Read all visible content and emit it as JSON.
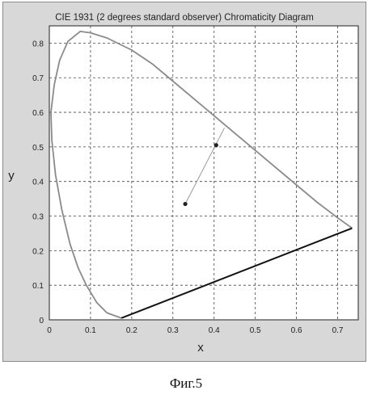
{
  "caption": "Фиг.5",
  "chart_data": {
    "type": "scatter",
    "title": "CIE 1931 (2 degrees standard observer) Chromaticity Diagram",
    "xlabel": "x",
    "ylabel": "y",
    "xlim": [
      0,
      0.75
    ],
    "ylim": [
      0,
      0.85
    ],
    "x_ticks": [
      0,
      0.1,
      0.2,
      0.3,
      0.4,
      0.5,
      0.6,
      0.7
    ],
    "y_ticks": [
      0,
      0.1,
      0.2,
      0.3,
      0.4,
      0.5,
      0.6,
      0.7,
      0.8
    ],
    "x_tick_labels": [
      "0",
      "0.1",
      "0.2",
      "0.3",
      "0.4",
      "0.5",
      "0.6",
      "0.7"
    ],
    "y_tick_labels": [
      "0",
      "0.1",
      "0.2",
      "0.3",
      "0.4",
      "0.5",
      "0.6",
      "0.7",
      "0.8"
    ],
    "grid": true,
    "spectral_locus": [
      [
        0.175,
        0.005
      ],
      [
        0.14,
        0.02
      ],
      [
        0.115,
        0.05
      ],
      [
        0.09,
        0.1
      ],
      [
        0.07,
        0.15
      ],
      [
        0.05,
        0.22
      ],
      [
        0.03,
        0.32
      ],
      [
        0.015,
        0.42
      ],
      [
        0.006,
        0.52
      ],
      [
        0.004,
        0.6
      ],
      [
        0.012,
        0.68
      ],
      [
        0.025,
        0.75
      ],
      [
        0.045,
        0.805
      ],
      [
        0.075,
        0.834
      ],
      [
        0.1,
        0.83
      ],
      [
        0.14,
        0.815
      ],
      [
        0.2,
        0.78
      ],
      [
        0.25,
        0.74
      ],
      [
        0.3,
        0.69
      ],
      [
        0.35,
        0.64
      ],
      [
        0.4,
        0.59
      ],
      [
        0.45,
        0.54
      ],
      [
        0.5,
        0.49
      ],
      [
        0.55,
        0.44
      ],
      [
        0.6,
        0.39
      ],
      [
        0.65,
        0.34
      ],
      [
        0.7,
        0.295
      ],
      [
        0.735,
        0.265
      ]
    ],
    "purple_line": [
      [
        0.735,
        0.265
      ],
      [
        0.175,
        0.005
      ]
    ],
    "connector_line": [
      [
        0.33,
        0.335
      ],
      [
        0.41,
        0.52
      ],
      [
        0.425,
        0.555
      ]
    ],
    "points": [
      {
        "x": 0.33,
        "y": 0.335
      },
      {
        "x": 0.405,
        "y": 0.505
      }
    ]
  }
}
